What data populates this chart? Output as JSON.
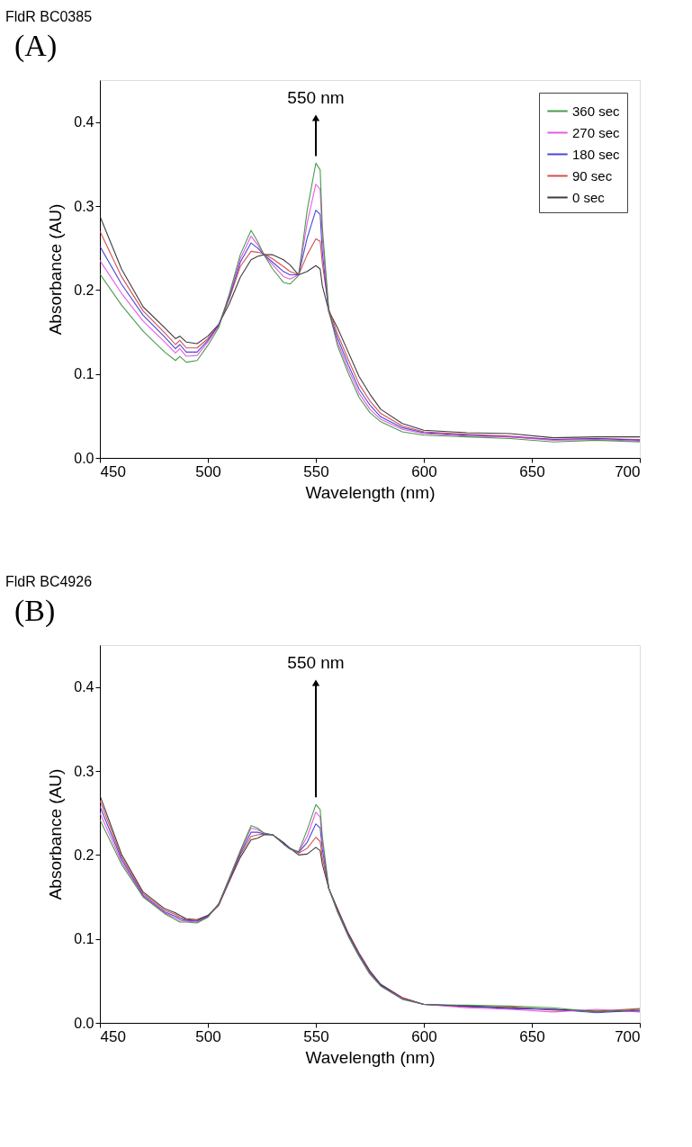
{
  "chart_data": [
    {
      "type": "line",
      "title": "FldR BC0385",
      "xlabel": "Wavelength (nm)",
      "ylabel": "Absorbance (AU)",
      "annotations": [
        "(A)",
        {
          "text": "550 nm",
          "x": 550,
          "y": 0.351
        }
      ],
      "x": [
        450,
        460,
        470,
        480,
        485,
        487,
        490,
        495,
        500,
        505,
        510,
        515,
        520,
        523,
        526,
        530,
        535,
        538,
        542,
        546,
        550,
        552,
        553,
        556,
        560,
        565,
        570,
        575,
        580,
        590,
        600,
        620,
        640,
        660,
        680,
        700
      ],
      "series": [
        {
          "name": "360 sec",
          "color": "#2a8a2a",
          "values": [
            0.219,
            0.182,
            0.151,
            0.126,
            0.116,
            0.121,
            0.114,
            0.116,
            0.134,
            0.155,
            0.196,
            0.242,
            0.271,
            0.258,
            0.242,
            0.225,
            0.209,
            0.207,
            0.217,
            0.295,
            0.351,
            0.343,
            0.275,
            0.176,
            0.134,
            0.101,
            0.072,
            0.054,
            0.043,
            0.031,
            0.027,
            0.025,
            0.023,
            0.019,
            0.021,
            0.019
          ]
        },
        {
          "name": "270 sec",
          "color": "#e040e0",
          "values": [
            0.235,
            0.196,
            0.163,
            0.138,
            0.125,
            0.13,
            0.121,
            0.122,
            0.138,
            0.157,
            0.194,
            0.237,
            0.264,
            0.254,
            0.242,
            0.23,
            0.216,
            0.213,
            0.218,
            0.28,
            0.326,
            0.32,
            0.262,
            0.174,
            0.138,
            0.106,
            0.077,
            0.058,
            0.046,
            0.034,
            0.029,
            0.026,
            0.025,
            0.021,
            0.022,
            0.02
          ]
        },
        {
          "name": "180 sec",
          "color": "#2828d0",
          "values": [
            0.252,
            0.207,
            0.17,
            0.144,
            0.13,
            0.135,
            0.126,
            0.126,
            0.14,
            0.158,
            0.192,
            0.233,
            0.256,
            0.25,
            0.242,
            0.233,
            0.222,
            0.218,
            0.218,
            0.262,
            0.295,
            0.29,
            0.245,
            0.174,
            0.143,
            0.111,
            0.082,
            0.063,
            0.049,
            0.036,
            0.03,
            0.027,
            0.025,
            0.022,
            0.023,
            0.021
          ]
        },
        {
          "name": "90 sec",
          "color": "#d03030",
          "values": [
            0.27,
            0.216,
            0.175,
            0.149,
            0.135,
            0.14,
            0.131,
            0.131,
            0.142,
            0.158,
            0.19,
            0.228,
            0.246,
            0.245,
            0.243,
            0.237,
            0.228,
            0.222,
            0.218,
            0.242,
            0.261,
            0.258,
            0.232,
            0.177,
            0.148,
            0.117,
            0.088,
            0.068,
            0.053,
            0.038,
            0.031,
            0.028,
            0.026,
            0.022,
            0.023,
            0.022
          ]
        },
        {
          "name": "0 sec",
          "color": "#1a1a1a",
          "values": [
            0.288,
            0.225,
            0.18,
            0.155,
            0.142,
            0.145,
            0.138,
            0.136,
            0.145,
            0.159,
            0.184,
            0.215,
            0.236,
            0.24,
            0.242,
            0.242,
            0.236,
            0.23,
            0.218,
            0.222,
            0.229,
            0.225,
            0.205,
            0.175,
            0.155,
            0.126,
            0.097,
            0.076,
            0.058,
            0.041,
            0.033,
            0.03,
            0.029,
            0.024,
            0.025,
            0.025
          ]
        }
      ],
      "xlim": [
        450,
        700
      ],
      "xticks": [
        450,
        500,
        550,
        600,
        650,
        700
      ],
      "ylim": [
        0,
        0.45
      ],
      "yticks": [
        {
          "value": 0,
          "label": "0.0"
        },
        0.1,
        0.2,
        0.3,
        0.4
      ],
      "grid": false,
      "legend": "top right",
      "line_style": "solid"
    },
    {
      "type": "line",
      "title": "FldR BC4926",
      "xlabel": "Wavelength (nm)",
      "ylabel": "Absorbance (AU)",
      "annotations": [
        "(B)",
        {
          "text": "550 nm",
          "x": 550,
          "y": 0.26
        }
      ],
      "x": [
        450,
        460,
        470,
        480,
        485,
        487,
        490,
        495,
        500,
        505,
        510,
        515,
        520,
        523,
        526,
        530,
        535,
        538,
        542,
        546,
        550,
        552,
        553,
        556,
        560,
        565,
        570,
        575,
        580,
        590,
        600,
        620,
        640,
        660,
        680,
        700
      ],
      "series": [
        {
          "name": "360 sec",
          "color": "#2a8a2a",
          "values": [
            0.242,
            0.189,
            0.15,
            0.13,
            0.123,
            0.12,
            0.12,
            0.119,
            0.126,
            0.142,
            0.173,
            0.205,
            0.235,
            0.232,
            0.226,
            0.224,
            0.213,
            0.207,
            0.204,
            0.23,
            0.26,
            0.254,
            0.222,
            0.16,
            0.132,
            0.103,
            0.079,
            0.058,
            0.044,
            0.028,
            0.022,
            0.021,
            0.02,
            0.018,
            0.013,
            0.016
          ]
        },
        {
          "name": "270 sec",
          "color": "#e040e0",
          "values": [
            0.25,
            0.192,
            0.151,
            0.131,
            0.125,
            0.122,
            0.121,
            0.12,
            0.126,
            0.141,
            0.172,
            0.204,
            0.232,
            0.23,
            0.226,
            0.224,
            0.213,
            0.207,
            0.203,
            0.222,
            0.251,
            0.245,
            0.215,
            0.16,
            0.133,
            0.104,
            0.08,
            0.059,
            0.044,
            0.029,
            0.022,
            0.018,
            0.016,
            0.013,
            0.016,
            0.013
          ]
        },
        {
          "name": "180 sec",
          "color": "#2828d0",
          "values": [
            0.258,
            0.195,
            0.152,
            0.132,
            0.127,
            0.124,
            0.122,
            0.121,
            0.127,
            0.141,
            0.171,
            0.202,
            0.227,
            0.227,
            0.225,
            0.224,
            0.214,
            0.208,
            0.203,
            0.215,
            0.237,
            0.232,
            0.207,
            0.16,
            0.134,
            0.105,
            0.081,
            0.06,
            0.045,
            0.029,
            0.022,
            0.02,
            0.017,
            0.016,
            0.012,
            0.015
          ]
        },
        {
          "name": "90 sec",
          "color": "#d03030",
          "values": [
            0.265,
            0.198,
            0.154,
            0.134,
            0.129,
            0.126,
            0.123,
            0.122,
            0.127,
            0.14,
            0.17,
            0.2,
            0.222,
            0.224,
            0.225,
            0.224,
            0.214,
            0.208,
            0.202,
            0.208,
            0.221,
            0.216,
            0.197,
            0.16,
            0.135,
            0.106,
            0.082,
            0.061,
            0.045,
            0.03,
            0.022,
            0.019,
            0.019,
            0.015,
            0.014,
            0.017
          ]
        },
        {
          "name": "0 sec",
          "color": "#1a1a1a",
          "values": [
            0.271,
            0.201,
            0.156,
            0.136,
            0.131,
            0.128,
            0.124,
            0.123,
            0.128,
            0.14,
            0.169,
            0.197,
            0.218,
            0.22,
            0.224,
            0.224,
            0.215,
            0.208,
            0.2,
            0.201,
            0.209,
            0.205,
            0.189,
            0.16,
            0.136,
            0.107,
            0.083,
            0.062,
            0.046,
            0.03,
            0.022,
            0.02,
            0.018,
            0.016,
            0.014,
            0.014
          ]
        }
      ],
      "xlim": [
        450,
        700
      ],
      "xticks": [
        450,
        500,
        550,
        600,
        650,
        700
      ],
      "ylim": [
        0,
        0.45
      ],
      "yticks": [
        {
          "value": 0,
          "label": "0.0"
        },
        0.1,
        0.2,
        0.3,
        0.4
      ],
      "grid": false,
      "legend": "top right",
      "line_style": "solid"
    }
  ]
}
